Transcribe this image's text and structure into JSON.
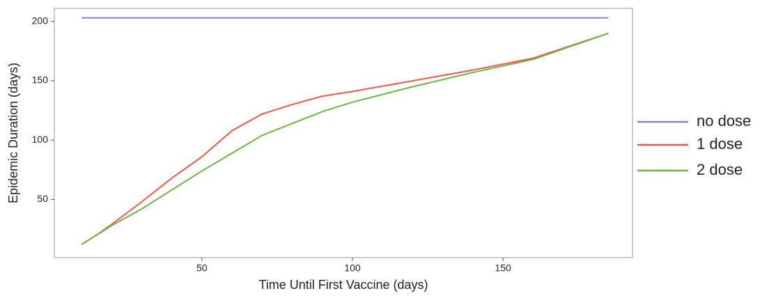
{
  "chart_data": {
    "type": "line",
    "xlabel": "Time Until First Vaccine (days)",
    "ylabel": "Epidemic Duration (days)",
    "x": [
      10,
      15,
      20,
      30,
      40,
      50,
      60,
      70,
      80,
      90,
      100,
      120,
      140,
      160,
      185
    ],
    "series": [
      {
        "name": "no dose",
        "color": "#7b86c8",
        "values": [
          203,
          203,
          203,
          203,
          203,
          203,
          203,
          203,
          203,
          203,
          203,
          203,
          203,
          203,
          203
        ]
      },
      {
        "name": "1 dose",
        "color": "#f2574a",
        "values": [
          12,
          20,
          29,
          48,
          68,
          86,
          108,
          122,
          130,
          137,
          141,
          150,
          159,
          169,
          190
        ]
      },
      {
        "name": "2 dose",
        "color": "#6ab54a",
        "values": [
          12,
          20,
          28,
          42,
          58,
          74,
          89,
          104,
          114,
          124,
          132,
          145,
          157,
          168,
          190
        ]
      }
    ],
    "xlim": [
      1,
      193
    ],
    "ylim": [
      1,
      211
    ],
    "xticks": [
      50,
      100,
      150
    ],
    "yticks": [
      50,
      100,
      150,
      200
    ],
    "grid": false,
    "legend": "right"
  }
}
